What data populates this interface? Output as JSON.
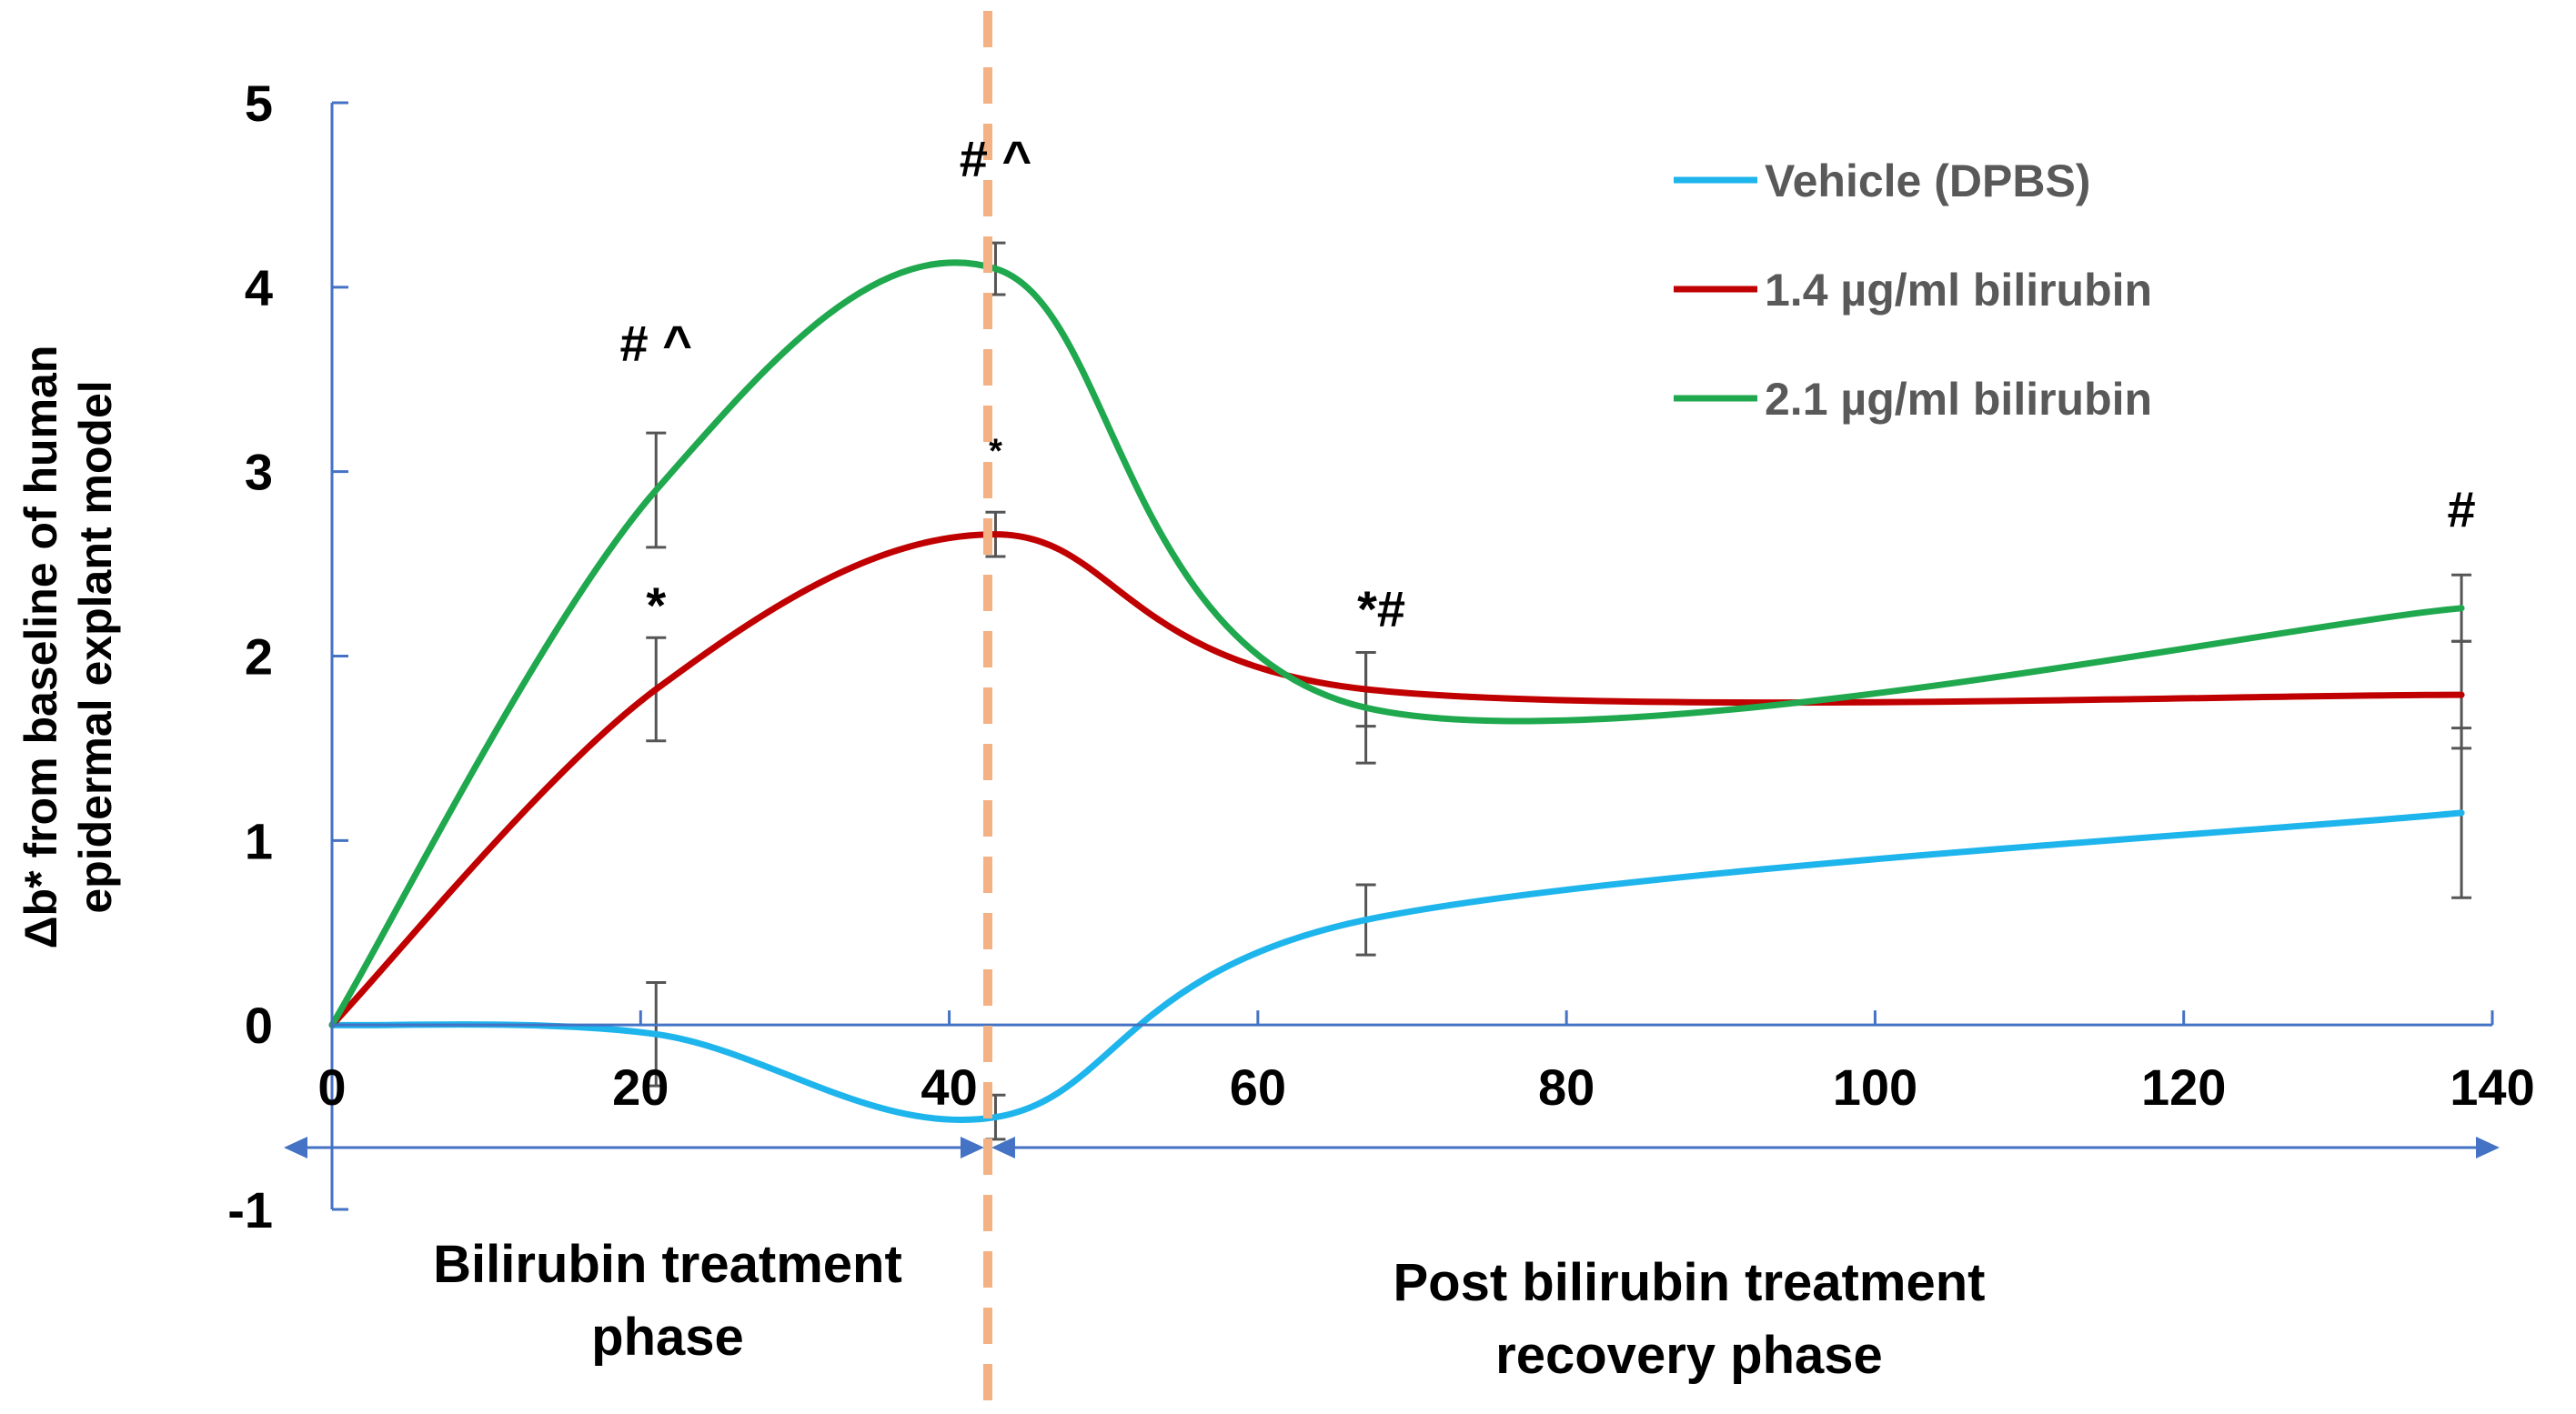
{
  "chart_data": {
    "type": "line",
    "title": "",
    "xlabel": "",
    "ylabel": [
      "Δb* from baseline of human",
      "epidermal explant model"
    ],
    "xlim": [
      0,
      140
    ],
    "ylim": [
      -1,
      5
    ],
    "x_ticks": [
      "0",
      "20",
      "40",
      "60",
      "80",
      "100",
      "120",
      "140"
    ],
    "y_ticks": [
      "-1",
      "0",
      "1",
      "2",
      "3",
      "4",
      "5"
    ],
    "series": [
      {
        "name": "Vehicle (DPBS)",
        "color": "#1EB4EC",
        "points": [
          [
            0,
            0
          ],
          [
            21,
            -0.05
          ],
          [
            43,
            -0.5
          ],
          [
            67,
            0.57
          ],
          [
            138,
            1.15
          ]
        ],
        "errors": [
          null,
          0.28,
          0.12,
          0.19,
          0.46
        ]
      },
      {
        "name": "1.4 µg/ml bilirubin",
        "color": "#C00000",
        "points": [
          [
            0,
            0
          ],
          [
            21,
            1.82
          ],
          [
            43,
            2.66
          ],
          [
            67,
            1.82
          ],
          [
            138,
            1.79
          ]
        ],
        "errors": [
          null,
          0.28,
          0.12,
          0.2,
          0.29
        ]
      },
      {
        "name": "2.1 µg/ml bilirubin",
        "color": "#1FA84E",
        "points": [
          [
            0,
            0
          ],
          [
            21,
            2.9
          ],
          [
            43,
            4.1
          ],
          [
            67,
            1.72
          ],
          [
            138,
            2.26
          ]
        ],
        "errors": [
          null,
          0.31,
          0.14,
          0.3,
          0.18
        ]
      }
    ],
    "phase_divider_x": 42.5,
    "phase_divider_color": "#F4B183",
    "phases": [
      {
        "lines": [
          "Bilirubin treatment",
          "phase"
        ]
      },
      {
        "lines": [
          "Post bilirubin treatment",
          "recovery phase"
        ]
      }
    ],
    "annotations": [
      {
        "text": "# ^",
        "x": 21,
        "y": 3.6,
        "size": "large"
      },
      {
        "text": "*",
        "x": 21,
        "y": 2.18,
        "size": "large"
      },
      {
        "text": "# ^",
        "x": 43,
        "y": 4.6,
        "size": "large"
      },
      {
        "text": "*",
        "x": 43,
        "y": 3.05,
        "size": "small"
      },
      {
        "text": "*#",
        "x": 68,
        "y": 2.16,
        "size": "large"
      },
      {
        "text": "#",
        "x": 138,
        "y": 2.7,
        "size": "large"
      }
    ],
    "legend_position": "top-right",
    "grid": false
  }
}
